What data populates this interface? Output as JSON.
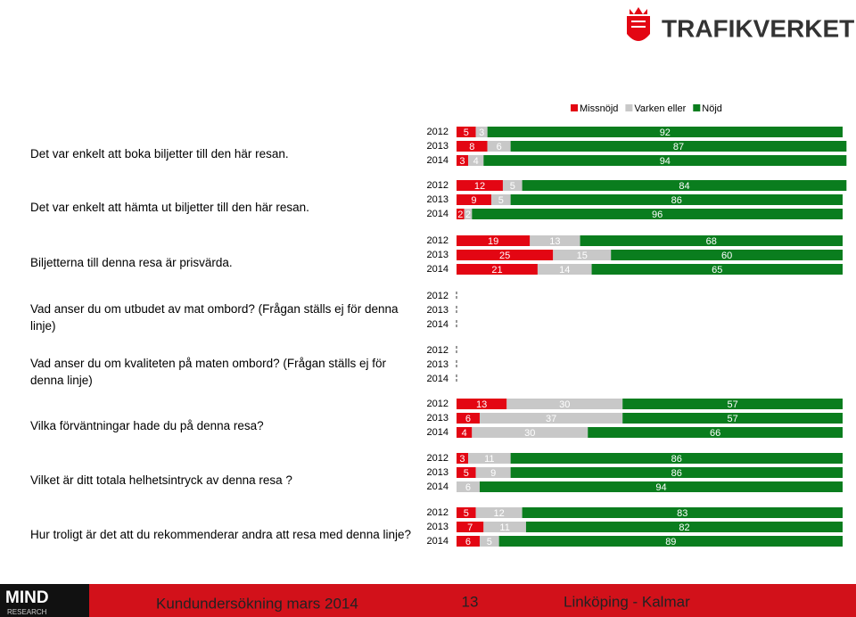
{
  "logo": "TRAFIKVERKET",
  "footer": {
    "brand": "MIND",
    "brand_sub": "RESEARCH",
    "title": "Kundundersökning mars 2014",
    "page": "13",
    "route": "Linköping - Kalmar"
  },
  "chart_data": {
    "type": "stacked-barh",
    "xlim": [
      0,
      100
    ],
    "years": [
      "2012",
      "2013",
      "2014"
    ],
    "categories": [
      "Det var enkelt att boka biljetter till den här resan.",
      "Det var enkelt att hämta ut biljetter till den här resan.",
      "Biljetterna till denna resa är prisvärda.",
      "Vad anser du om utbudet av mat ombord? (Frågan ställs ej för denna linje)",
      "Vad anser du om kvaliteten på maten ombord? (Frågan ställs ej för denna linje)",
      "Vilka förväntningar hade du på denna resa?",
      "Vilket är ditt totala helhetsintryck av denna resa ?",
      "Hur troligt är det att du rekommenderar andra att resa med denna linje?"
    ],
    "series": [
      {
        "name": "Missnöjd",
        "color": "#e30613",
        "values": [
          [
            5,
            8,
            3
          ],
          [
            12,
            9,
            2
          ],
          [
            19,
            25,
            21
          ],
          null,
          null,
          [
            13,
            6,
            4
          ],
          [
            3,
            5,
            0
          ],
          [
            5,
            7,
            6
          ]
        ]
      },
      {
        "name": "Varken eller",
        "color": "#c8c8c8",
        "values": [
          [
            3,
            6,
            4
          ],
          [
            5,
            5,
            2
          ],
          [
            13,
            15,
            14
          ],
          null,
          null,
          [
            30,
            37,
            30
          ],
          [
            11,
            9,
            6
          ],
          [
            12,
            11,
            5
          ]
        ]
      },
      {
        "name": "Nöjd",
        "color": "#0a7d1e",
        "values": [
          [
            92,
            87,
            94
          ],
          [
            84,
            86,
            96
          ],
          [
            68,
            60,
            65
          ],
          null,
          null,
          [
            57,
            57,
            66
          ],
          [
            86,
            86,
            94
          ],
          [
            83,
            82,
            89
          ]
        ]
      }
    ]
  }
}
